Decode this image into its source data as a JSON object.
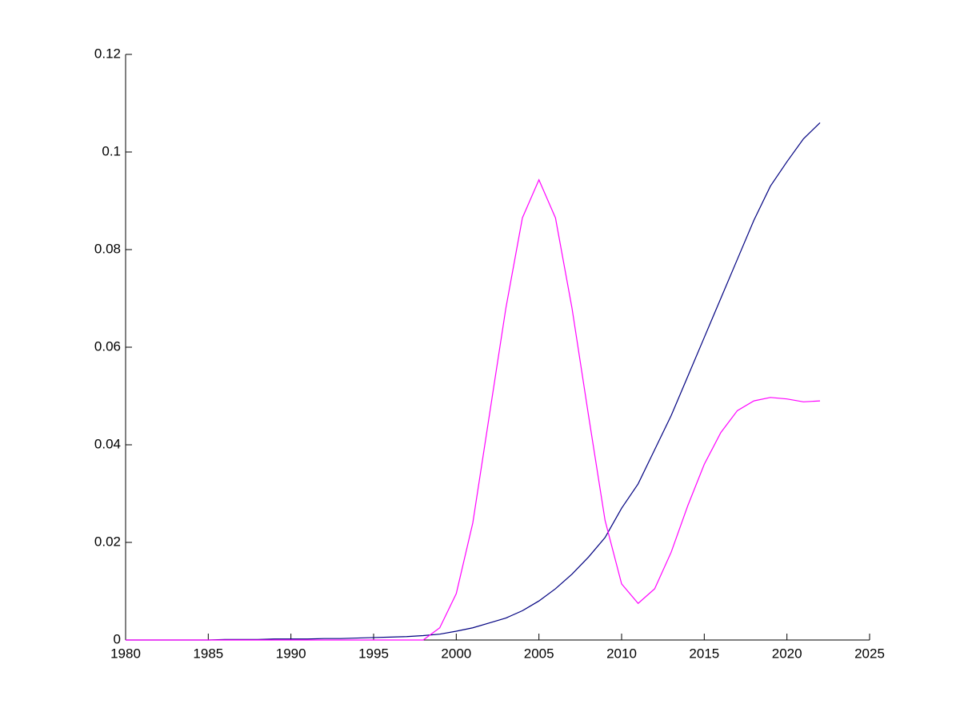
{
  "chart_data": {
    "type": "line",
    "x": [
      1980,
      1981,
      1982,
      1983,
      1984,
      1985,
      1986,
      1987,
      1988,
      1989,
      1990,
      1991,
      1992,
      1993,
      1994,
      1995,
      1996,
      1997,
      1998,
      1999,
      2000,
      2001,
      2002,
      2003,
      2004,
      2005,
      2006,
      2007,
      2008,
      2009,
      2010,
      2011,
      2012,
      2013,
      2014,
      2015,
      2016,
      2017,
      2018,
      2019,
      2020,
      2021,
      2022
    ],
    "series": [
      {
        "color": "#000080",
        "values": [
          0,
          0,
          0,
          0,
          0,
          0,
          0.0001,
          0.0001,
          0.0001,
          0.0002,
          0.0002,
          0.0002,
          0.0003,
          0.0003,
          0.0004,
          0.0005,
          0.0006,
          0.0007,
          0.0009,
          0.0012,
          0.0018,
          0.0025,
          0.0035,
          0.0045,
          0.006,
          0.008,
          0.0105,
          0.0135,
          0.017,
          0.021,
          0.027,
          0.032,
          0.039,
          0.046,
          0.054,
          0.062,
          0.07,
          0.078,
          0.086,
          0.093,
          0.098,
          0.1027,
          0.106
        ]
      },
      {
        "color": "#ff00ff",
        "values": [
          0,
          0,
          0,
          0,
          0,
          0,
          0,
          0,
          0,
          0,
          0,
          0,
          0,
          0,
          0,
          0,
          0,
          0,
          0,
          0.0025,
          0.0095,
          0.024,
          0.046,
          0.068,
          0.0865,
          0.0943,
          0.0865,
          0.068,
          0.046,
          0.0245,
          0.0115,
          0.0075,
          0.0105,
          0.018,
          0.0275,
          0.036,
          0.0425,
          0.047,
          0.049,
          0.0497,
          0.0494,
          0.0488,
          0.049
        ]
      }
    ],
    "xlim": [
      1980,
      2025
    ],
    "xticks": [
      1980,
      1985,
      1990,
      1995,
      2000,
      2005,
      2010,
      2015,
      2020,
      2025
    ],
    "ylim": [
      0,
      0.12
    ],
    "yticks": [
      0,
      0.02,
      0.04,
      0.06,
      0.08,
      0.1,
      0.12
    ],
    "grid": false
  }
}
